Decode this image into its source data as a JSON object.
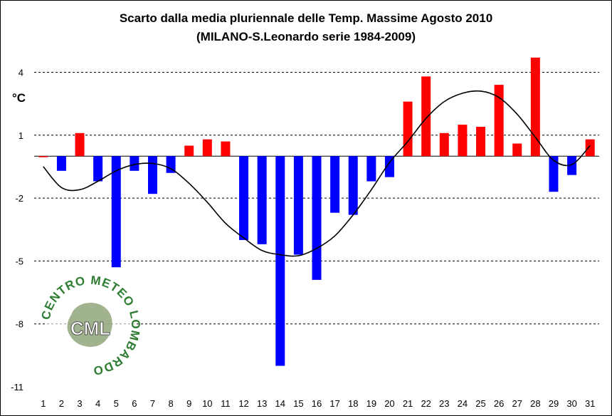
{
  "chart_data": {
    "type": "bar",
    "title": "Scarto dalla media pluriennale delle Temp. Massime Agosto 2010",
    "subtitle": "(MILANO-S.Leonardo serie 1984-2009)",
    "ylabel": "°C",
    "xlabel": "",
    "ylim": [
      -11,
      5
    ],
    "yticks": [
      4,
      1,
      -2,
      -5,
      -8,
      -11
    ],
    "grid": true,
    "categories": [
      "1",
      "2",
      "3",
      "4",
      "5",
      "6",
      "7",
      "8",
      "9",
      "10",
      "11",
      "12",
      "13",
      "14",
      "15",
      "16",
      "17",
      "18",
      "19",
      "20",
      "21",
      "22",
      "23",
      "24",
      "25",
      "26",
      "27",
      "28",
      "29",
      "30",
      "31"
    ],
    "values": [
      0.0,
      -0.7,
      1.1,
      -1.2,
      -5.3,
      -0.7,
      -1.8,
      -0.8,
      0.5,
      0.8,
      0.7,
      -4.0,
      -4.2,
      -10.0,
      -4.7,
      -5.9,
      -2.7,
      -2.8,
      -1.2,
      -1.0,
      2.6,
      3.8,
      1.1,
      1.5,
      1.4,
      3.4,
      0.6,
      4.7,
      -1.7,
      -0.9,
      0.8
    ],
    "positive_color": "#ff0000",
    "negative_color": "#0000ff",
    "trend": {
      "type": "line",
      "color": "#000000",
      "values": [
        -0.5,
        -1.5,
        -1.6,
        -1.2,
        -0.7,
        -0.4,
        -0.35,
        -0.6,
        -1.3,
        -2.2,
        -3.2,
        -3.9,
        -4.5,
        -4.7,
        -4.75,
        -4.4,
        -3.8,
        -2.8,
        -1.6,
        -0.3,
        0.7,
        1.8,
        2.6,
        3.0,
        3.1,
        2.8,
        2.0,
        0.9,
        -0.2,
        -0.4,
        0.5
      ]
    }
  },
  "logo": {
    "text": "CML",
    "ring_text": "CENTRO METEO LOMBARDO",
    "ring_color": "#2e7d32"
  }
}
